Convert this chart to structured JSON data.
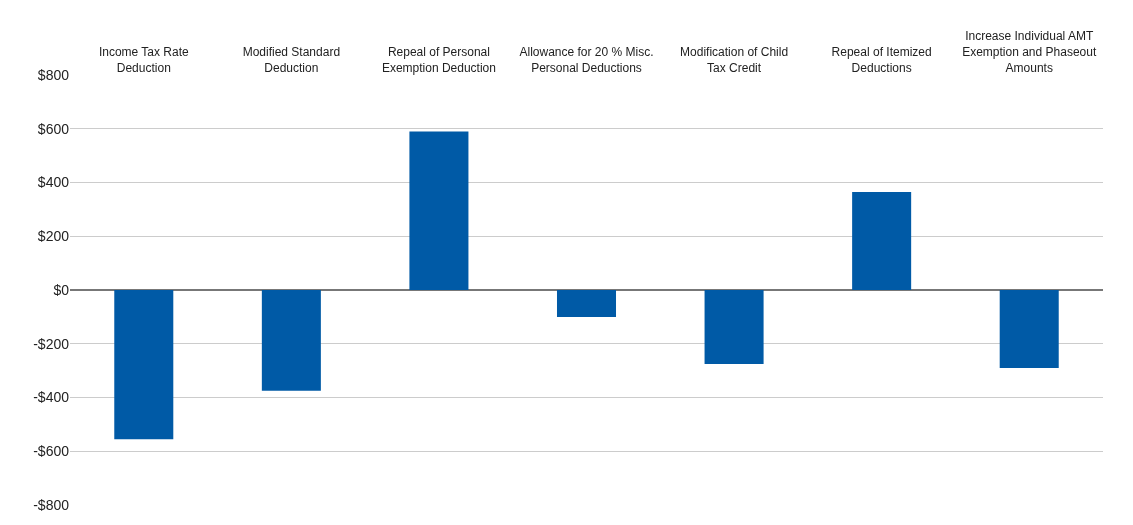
{
  "chart_data": {
    "type": "bar",
    "categories": [
      "Income Tax Rate Deduction",
      "Modified Standard Deduction",
      "Repeal of Personal Exemption Deduction",
      "Allowance for 20 % Misc. Personal Deductions",
      "Modification of Child Tax Credit",
      "Repeal of Itemized Deductions",
      "Increase Individual AMT Exemption and Phaseout Amounts"
    ],
    "values": [
      -555,
      -375,
      590,
      -100,
      -275,
      365,
      -290
    ],
    "color": "#005aa6",
    "ylim": [
      -800,
      800
    ],
    "yticks": [
      {
        "value": -800,
        "label": "-$800"
      },
      {
        "value": -600,
        "label": "-$600"
      },
      {
        "value": -400,
        "label": "-$400"
      },
      {
        "value": -200,
        "label": "-$200"
      },
      {
        "value": 0,
        "label": "$0"
      },
      {
        "value": 200,
        "label": "$200"
      },
      {
        "value": 400,
        "label": "$400"
      },
      {
        "value": 600,
        "label": "$600"
      },
      {
        "value": 800,
        "label": "$800"
      }
    ],
    "grid": "y",
    "legend": false
  }
}
